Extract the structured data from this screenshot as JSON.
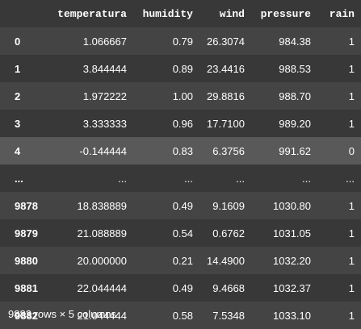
{
  "dataframe": {
    "index_header": "",
    "columns": [
      "temperatura",
      "humidity",
      "wind",
      "pressure",
      "rain"
    ],
    "rows": [
      {
        "index": "0",
        "values": [
          "1.066667",
          "0.79",
          "26.3074",
          "984.38",
          "1"
        ]
      },
      {
        "index": "1",
        "values": [
          "3.844444",
          "0.89",
          "23.4416",
          "988.53",
          "1"
        ]
      },
      {
        "index": "2",
        "values": [
          "1.972222",
          "1.00",
          "29.8816",
          "988.70",
          "1"
        ]
      },
      {
        "index": "3",
        "values": [
          "3.333333",
          "0.96",
          "17.7100",
          "989.20",
          "1"
        ]
      },
      {
        "index": "4",
        "values": [
          "-0.144444",
          "0.83",
          "6.3756",
          "991.62",
          "0"
        ]
      },
      {
        "index": "...",
        "values": [
          "...",
          "...",
          "...",
          "...",
          "..."
        ]
      },
      {
        "index": "9878",
        "values": [
          "18.838889",
          "0.49",
          "9.1609",
          "1030.80",
          "1"
        ]
      },
      {
        "index": "9879",
        "values": [
          "21.088889",
          "0.54",
          "0.6762",
          "1031.05",
          "1"
        ]
      },
      {
        "index": "9880",
        "values": [
          "20.000000",
          "0.21",
          "14.4900",
          "1032.20",
          "1"
        ]
      },
      {
        "index": "9881",
        "values": [
          "22.044444",
          "0.49",
          "9.4668",
          "1032.37",
          "1"
        ]
      },
      {
        "index": "9882",
        "values": [
          "21.044444",
          "0.58",
          "7.5348",
          "1033.10",
          "1"
        ]
      }
    ],
    "hovered_row": 4,
    "shape_summary": "9883 rows × 5 columns"
  },
  "theme": {
    "background": "#383838",
    "row_stripe": "#444444",
    "row_hover": "#595959",
    "text": "#ffffff"
  }
}
